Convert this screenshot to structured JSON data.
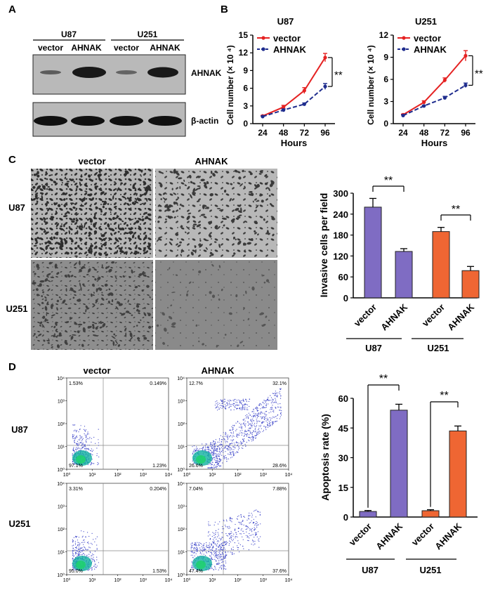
{
  "panels": {
    "A": {
      "letter": "A",
      "group_labels": [
        "U87",
        "U251"
      ],
      "lane_labels": [
        "vector",
        "AHNAK",
        "vector",
        "AHNAK"
      ],
      "blot_labels": [
        "AHNAK",
        "β-actin"
      ],
      "colors": {
        "blot_bg": "#b9b9b9",
        "band": "#101010"
      }
    },
    "B": {
      "letter": "B"
    },
    "C": {
      "letter": "C",
      "col_labels": [
        "vector",
        "AHNAK"
      ],
      "row_labels": [
        "U87",
        "U251"
      ],
      "colors": {
        "u87_bg": "#b5b5b5",
        "u251_bg": "#8c8c8c",
        "cell": "#3a3a3a"
      }
    },
    "D": {
      "letter": "D",
      "col_labels": [
        "vector",
        "AHNAK"
      ],
      "row_labels": [
        "U87",
        "U251"
      ],
      "plots": [
        {
          "name": "U87 vector",
          "ul": "1.53%",
          "ur": "0.149%",
          "ll": "97.1%",
          "lr": "1.23%"
        },
        {
          "name": "U87 AHNAK",
          "ul": "12.7%",
          "ur": "32.1%",
          "ll": "26.6%",
          "lr": "28.6%"
        },
        {
          "name": "U251 vector",
          "ul": "3.31%",
          "ur": "0.204%",
          "ll": "95.0%",
          "lr": "1.53%"
        },
        {
          "name": "U251 AHNAK",
          "ul": "7.04%",
          "ur": "7.88%",
          "ll": "47.4%",
          "lr": "37.6%"
        }
      ],
      "y_tick_labels": [
        "10⁰",
        "10¹",
        "10²",
        "10³",
        "10⁴"
      ],
      "x_tick_labels": [
        "10⁰",
        "10¹",
        "10²",
        "10³",
        "10⁴"
      ],
      "colors": {
        "dots": "#3b43c8",
        "core": "#10b0a0",
        "core2": "#20d070"
      }
    }
  },
  "chart_data": [
    {
      "type": "line",
      "title": "U87",
      "xlabel": "Hours",
      "ylabel": "Cell number (× 10 ⁴)",
      "x": [
        24,
        48,
        72,
        96
      ],
      "xticks": [
        "24",
        "48",
        "72",
        "96"
      ],
      "ylim": [
        0,
        15
      ],
      "yticks": [
        "0",
        "3",
        "6",
        "9",
        "12",
        "15"
      ],
      "series": [
        {
          "name": "vector",
          "values": [
            1.3,
            2.8,
            5.6,
            11.2
          ],
          "err": [
            0.1,
            0.3,
            0.5,
            0.7
          ],
          "color": "#e52222",
          "style": "solid"
        },
        {
          "name": "AHNAK",
          "values": [
            1.2,
            2.3,
            3.3,
            6.3
          ],
          "err": [
            0.1,
            0.2,
            0.2,
            0.5
          ],
          "color": "#1f2d8e",
          "style": "dashed"
        }
      ],
      "annotation": "**"
    },
    {
      "type": "line",
      "title": "U251",
      "xlabel": "Hours",
      "ylabel": "Cell number (× 10 ⁴)",
      "x": [
        24,
        48,
        72,
        96
      ],
      "xticks": [
        "24",
        "48",
        "72",
        "96"
      ],
      "ylim": [
        0,
        12
      ],
      "yticks": [
        "0",
        "3",
        "6",
        "9",
        "12"
      ],
      "series": [
        {
          "name": "vector",
          "values": [
            1.2,
            2.9,
            5.9,
            9.2
          ],
          "err": [
            0.1,
            0.2,
            0.3,
            0.7
          ],
          "color": "#e52222",
          "style": "solid"
        },
        {
          "name": "AHNAK",
          "values": [
            1.1,
            2.4,
            3.5,
            5.2
          ],
          "err": [
            0.1,
            0.1,
            0.2,
            0.3
          ],
          "color": "#1f2d8e",
          "style": "dashed"
        }
      ],
      "annotation": "**"
    },
    {
      "type": "bar",
      "ylabel": "Invasive cells per field",
      "ylim": [
        0,
        300
      ],
      "yticks": [
        "0",
        "60",
        "120",
        "180",
        "240",
        "300"
      ],
      "categories": [
        "vector",
        "AHNAK",
        "vector",
        "AHNAK"
      ],
      "groups": [
        "U87",
        "U251"
      ],
      "values": [
        260,
        133,
        190,
        78
      ],
      "err": [
        25,
        8,
        12,
        12
      ],
      "colors": [
        "#7f6cc3",
        "#7f6cc3",
        "#ef6633",
        "#ef6633"
      ],
      "annotation": "**"
    },
    {
      "type": "bar",
      "ylabel": "Apoptosis rate (%)",
      "ylim": [
        0,
        60
      ],
      "yticks": [
        "0",
        "15",
        "30",
        "45",
        "60"
      ],
      "categories": [
        "vector",
        "AHNAK",
        "vector",
        "AHNAK"
      ],
      "groups": [
        "U87",
        "U251"
      ],
      "values": [
        2.8,
        54,
        3.2,
        43.5
      ],
      "err": [
        0.5,
        3,
        0.5,
        2.5
      ],
      "colors": [
        "#7f6cc3",
        "#7f6cc3",
        "#ef6633",
        "#ef6633"
      ],
      "annotation": "**"
    }
  ]
}
